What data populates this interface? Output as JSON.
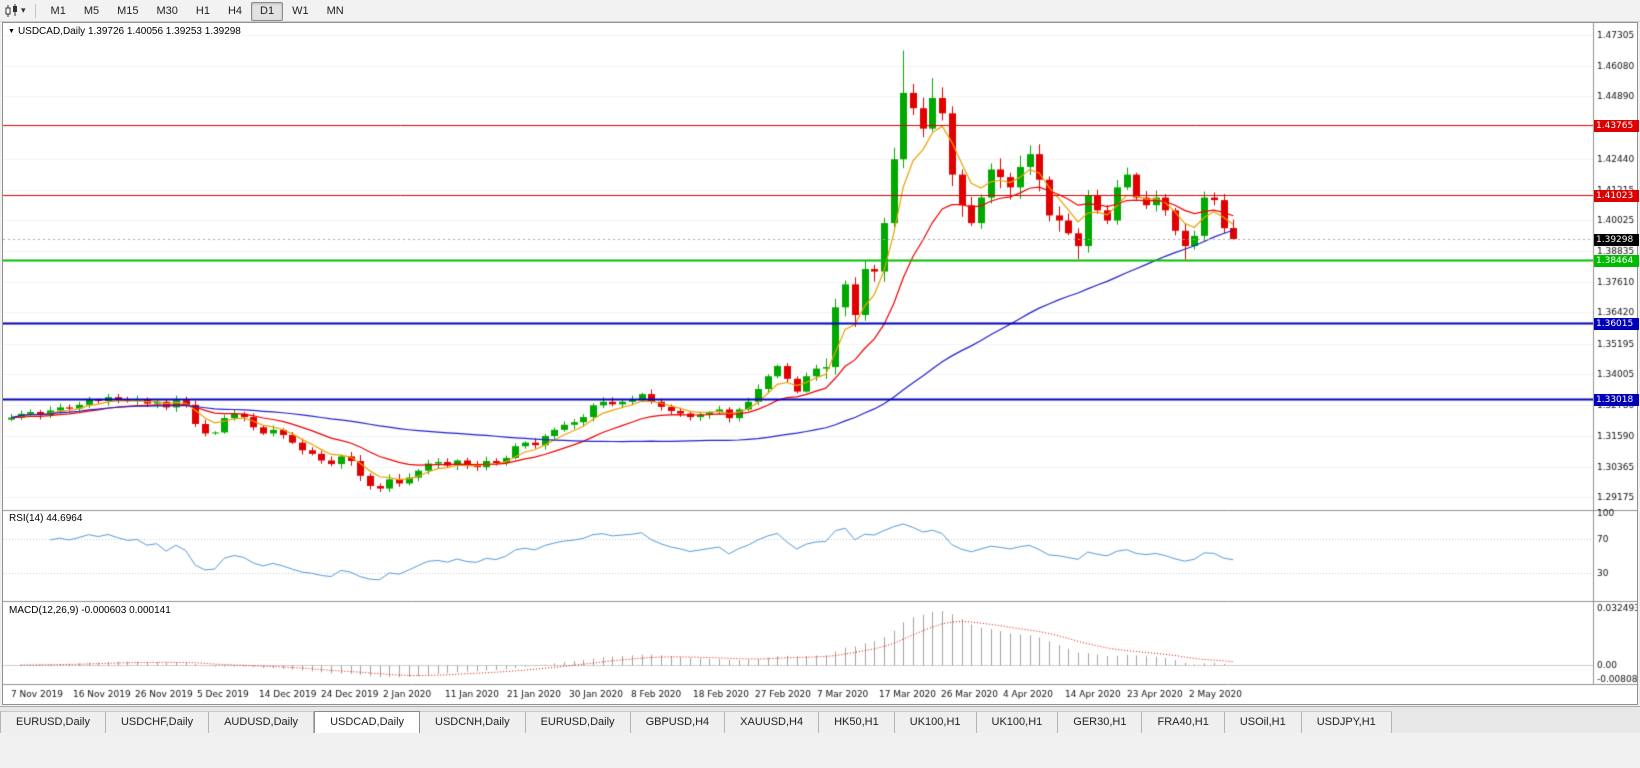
{
  "toolbar": {
    "timeframes": [
      {
        "label": "M1",
        "active": false
      },
      {
        "label": "M5",
        "active": false
      },
      {
        "label": "M15",
        "active": false
      },
      {
        "label": "M30",
        "active": false
      },
      {
        "label": "H1",
        "active": false
      },
      {
        "label": "H4",
        "active": false
      },
      {
        "label": "D1",
        "active": true
      },
      {
        "label": "W1",
        "active": false
      },
      {
        "label": "MN",
        "active": false
      }
    ]
  },
  "chart": {
    "title_line": "USDCAD,Daily 1.39726 1.40056 1.39253 1.39298"
  },
  "chart_data": {
    "type": "candlestick",
    "symbol": "USDCAD",
    "timeframe": "Daily",
    "title_ohlc": {
      "open": 1.39726,
      "high": 1.40056,
      "low": 1.39253,
      "close": 1.39298
    },
    "price_axis": {
      "view_max": 1.4768,
      "view_min": 1.2872,
      "ticks": [
        1.47305,
        1.4608,
        1.4489,
        1.43665,
        1.4244,
        1.41215,
        1.40025,
        1.38835,
        1.3761,
        1.3642,
        1.35195,
        1.34005,
        1.3278,
        1.3159,
        1.30365,
        1.29175
      ]
    },
    "first_open": 1.3222,
    "closes": [
      1.323,
      1.3245,
      1.3252,
      1.324,
      1.3258,
      1.327,
      1.3265,
      1.328,
      1.33,
      1.3295,
      1.331,
      1.3302,
      1.3295,
      1.33,
      1.3285,
      1.3292,
      1.327,
      1.3298,
      1.328,
      1.3205,
      1.3168,
      1.3172,
      1.3228,
      1.3245,
      1.3232,
      1.3192,
      1.3168,
      1.3182,
      1.3162,
      1.3132,
      1.3102,
      1.3088,
      1.3062,
      1.3048,
      1.3078,
      1.306,
      1.3002,
      1.2962,
      1.2952,
      1.2988,
      1.2972,
      1.2995,
      1.3022,
      1.305,
      1.3056,
      1.3042,
      1.3062,
      1.3042,
      1.3036,
      1.306,
      1.3052,
      1.3072,
      1.3118,
      1.3132,
      1.3122,
      1.3158,
      1.3182,
      1.3202,
      1.3212,
      1.3232,
      1.3278,
      1.3292,
      1.3282,
      1.3292,
      1.3302,
      1.3322,
      1.3292,
      1.3272,
      1.3256,
      1.3246,
      1.3232,
      1.3242,
      1.3252,
      1.3262,
      1.3228,
      1.3262,
      1.3292,
      1.3342,
      1.3392,
      1.3432,
      1.3382,
      1.3332,
      1.3392,
      1.3422,
      1.3428,
      1.3662,
      1.3752,
      1.3632,
      1.3812,
      1.3802,
      1.3992,
      1.4242,
      1.4502,
      1.4442,
      1.4362,
      1.4482,
      1.4422,
      1.4182,
      1.4062,
      1.3992,
      1.4092,
      1.4202,
      1.4172,
      1.4132,
      1.4212,
      1.4262,
      1.4162,
      1.4022,
      1.4002,
      1.3952,
      1.3902,
      1.4102,
      1.4042,
      1.4002,
      1.4132,
      1.4182,
      1.4092,
      1.4062,
      1.4092,
      1.4042,
      1.3962,
      1.3902,
      1.3942,
      1.4092,
      1.4082,
      1.3972,
      1.39298
    ],
    "last_candle": [
      1.39726,
      1.40056,
      1.39253,
      1.39298
    ],
    "high_overrides": {
      "92": 1.4668,
      "95": 1.456
    },
    "low_overrides": {
      "110": 1.3852,
      "121": 1.385
    },
    "volatility": {
      "base_range": 0.0016,
      "boost": [
        [
          29,
          43,
          1.3
        ],
        [
          84,
          108,
          2.6
        ],
        [
          109,
          126,
          1.6
        ]
      ]
    },
    "candle_up_color": "#00a800",
    "candle_down_color": "#e00000",
    "moving_averages": [
      {
        "name": "fast",
        "method": "ema",
        "period": 5,
        "color": "#e8a200"
      },
      {
        "name": "medium",
        "method": "ema",
        "period": 15,
        "color": "#ee0000"
      },
      {
        "name": "slow",
        "method": "sma",
        "period": 50,
        "color": "#2020cc"
      }
    ],
    "levels": [
      {
        "price": 1.43765,
        "label": "1.43765",
        "color": "#dd0000",
        "width": 1
      },
      {
        "price": 1.41023,
        "label": "1.41023",
        "color": "#dd0000",
        "width": 1
      },
      {
        "price": 1.38464,
        "label": "1.38464",
        "color": "#00bb00",
        "width": 2
      },
      {
        "price": 1.36015,
        "label": "1.36015",
        "color": "#0000bb",
        "width": 2
      },
      {
        "price": 1.33018,
        "label": "1.33018",
        "color": "#0000bb",
        "width": 2
      }
    ],
    "current_price": {
      "value": 1.39298,
      "label": "1.39298",
      "badge_bg": "#000000"
    },
    "rsi": {
      "label": "RSI(14) 44.6964",
      "period": 14,
      "value": 44.6964,
      "color": "#5599d8",
      "axis_levels": [
        100,
        70,
        30
      ],
      "guide_levels": [
        70,
        30
      ]
    },
    "macd": {
      "label": "MACD(12,26,9) -0.000603 0.000141",
      "fast": 12,
      "slow": 26,
      "signal_period": 9,
      "values_text": [
        "-0.000603",
        "0.000141"
      ],
      "histogram_color": "#a0a0a0",
      "signal_color": "#e00000",
      "axis": {
        "view_max": 0.0346,
        "view_min": -0.0096,
        "labels": [
          {
            "text": "0.032493",
            "value": 0.032493
          },
          {
            "text": "0.00",
            "value": 0
          },
          {
            "text": "-0.00808",
            "value": -0.00808
          }
        ]
      }
    },
    "date_labels": [
      "7 Nov 2019",
      "16 Nov 2019",
      "26 Nov 2019",
      "5 Dec 2019",
      "14 Dec 2019",
      "24 Dec 2019",
      "2 Jan 2020",
      "11 Jan 2020",
      "21 Jan 2020",
      "30 Jan 2020",
      "8 Feb 2020",
      "18 Feb 2020",
      "27 Feb 2020",
      "7 Mar 2020",
      "17 Mar 2020",
      "26 Mar 2020",
      "4 Apr 2020",
      "14 Apr 2020",
      "23 Apr 2020",
      "2 May 2020"
    ]
  },
  "tabs": [
    {
      "label": "EURUSD,Daily",
      "active": false
    },
    {
      "label": "USDCHF,Daily",
      "active": false
    },
    {
      "label": "AUDUSD,Daily",
      "active": false
    },
    {
      "label": "USDCAD,Daily",
      "active": true
    },
    {
      "label": "USDCNH,Daily",
      "active": false
    },
    {
      "label": "EURUSD,Daily",
      "active": false
    },
    {
      "label": "GBPUSD,H4",
      "active": false
    },
    {
      "label": "XAUUSD,H4",
      "active": false
    },
    {
      "label": "HK50,H1",
      "active": false
    },
    {
      "label": "UK100,H1",
      "active": false
    },
    {
      "label": "UK100,H1",
      "active": false
    },
    {
      "label": "GER30,H1",
      "active": false
    },
    {
      "label": "FRA40,H1",
      "active": false
    },
    {
      "label": "USOil,H1",
      "active": false
    },
    {
      "label": "USDJPY,H1",
      "active": false
    }
  ]
}
